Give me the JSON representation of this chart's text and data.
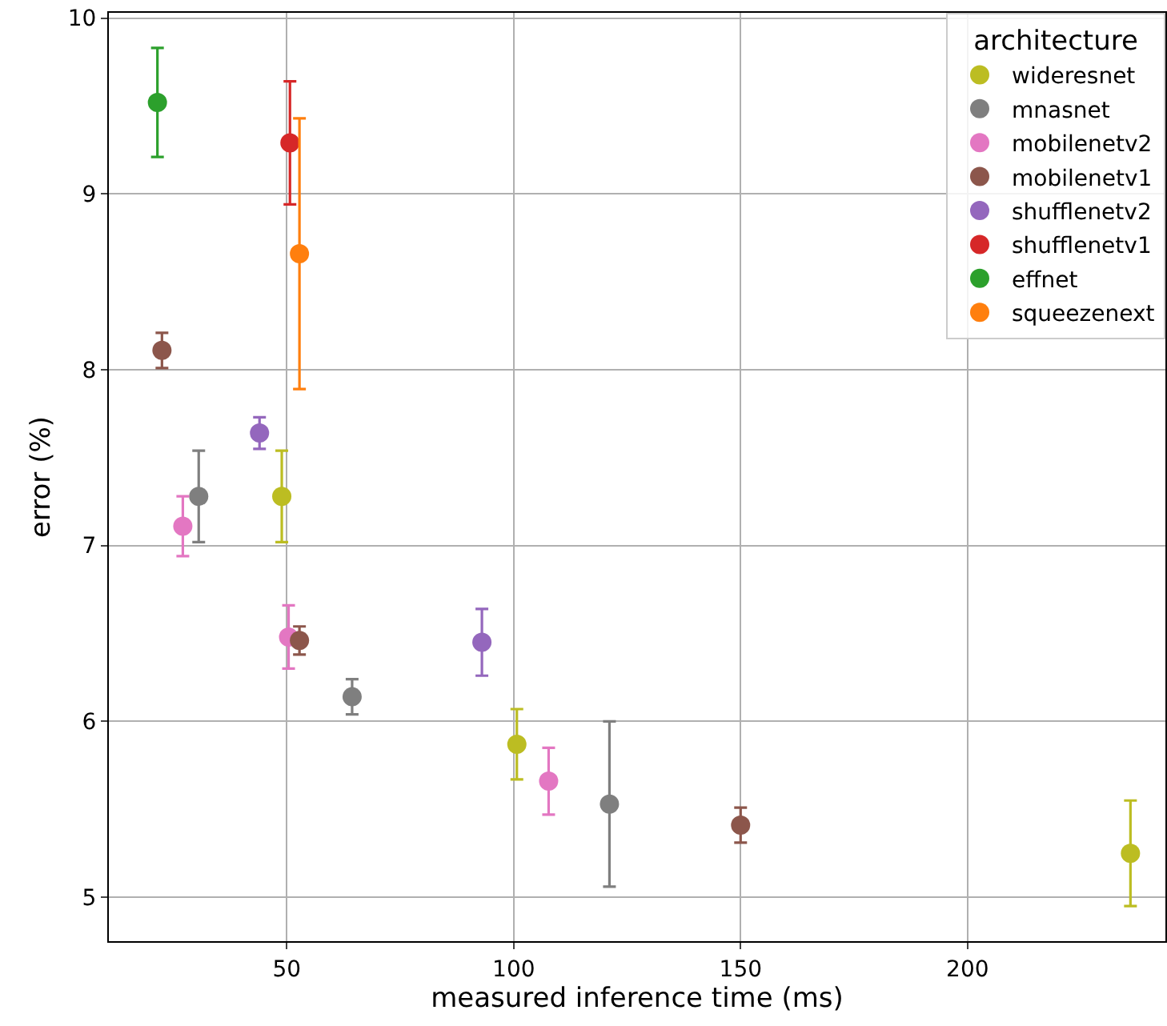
{
  "chart_data": {
    "type": "scatter",
    "xlabel": "measured inference time (ms)",
    "ylabel": "error (%)",
    "legend_title": "architecture",
    "xlim": [
      10.8,
      243.6
    ],
    "xticks": [
      50,
      100,
      150,
      200
    ],
    "ylim": [
      4.75,
      10.03
    ],
    "yticks": [
      5,
      6,
      7,
      8,
      9,
      10
    ],
    "grid": true,
    "legend": "top right",
    "marker": "circle",
    "series": [
      {
        "name": "wideresnet",
        "color": "#bcbd22",
        "x": [
          48.9,
          100.7,
          235.9
        ],
        "values": [
          7.28,
          5.87,
          5.25
        ],
        "errors": [
          0.26,
          0.2,
          0.3
        ]
      },
      {
        "name": "mnasnet",
        "color": "#7f7f7f",
        "x": [
          30.6,
          64.4,
          121.1
        ],
        "values": [
          7.28,
          6.14,
          5.53
        ],
        "errors": [
          0.26,
          0.1,
          0.47
        ]
      },
      {
        "name": "mobilenetv2",
        "color": "#e377c2",
        "x": [
          27.1,
          50.4,
          107.7
        ],
        "values": [
          7.11,
          6.48,
          5.66
        ],
        "errors": [
          0.17,
          0.18,
          0.19
        ]
      },
      {
        "name": "mobilenetv1",
        "color": "#8c564b",
        "x": [
          22.5,
          52.8,
          150
        ],
        "values": [
          8.11,
          6.46,
          5.41
        ],
        "errors": [
          0.1,
          0.08,
          0.1
        ]
      },
      {
        "name": "shufflenetv2",
        "color": "#9467bd",
        "x": [
          44,
          93
        ],
        "values": [
          7.64,
          6.45
        ],
        "errors": [
          0.09,
          0.19
        ]
      },
      {
        "name": "shufflenetv1",
        "color": "#d62728",
        "x": [
          50.7
        ],
        "values": [
          9.29
        ],
        "errors": [
          0.35
        ]
      },
      {
        "name": "effnet",
        "color": "#2ca02c",
        "x": [
          21.5
        ],
        "values": [
          9.52
        ],
        "errors": [
          0.31
        ]
      },
      {
        "name": "squeezenext",
        "color": "#ff7f0e",
        "x": [
          52.8
        ],
        "values": [
          8.66
        ],
        "errors": [
          0.77
        ]
      }
    ]
  }
}
